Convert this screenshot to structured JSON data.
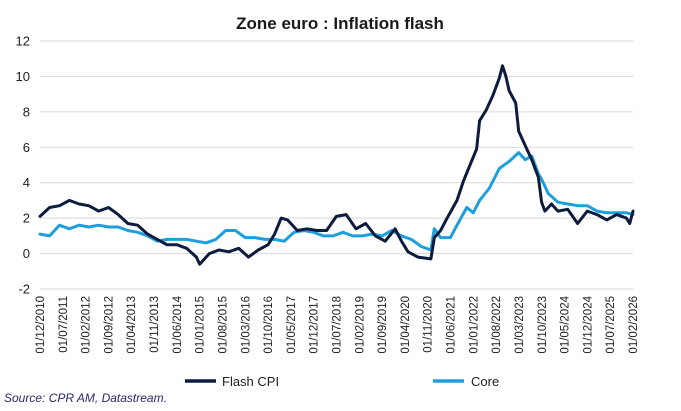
{
  "chart_data": {
    "type": "line",
    "title": "Zone euro : Inflation flash",
    "ylim": [
      -2,
      12
    ],
    "yticks": [
      -2,
      0,
      2,
      4,
      6,
      8,
      10,
      12
    ],
    "xlim": [
      "2010-12-01",
      "2026-02-01"
    ],
    "xtick_labels": [
      "01/12/2010",
      "01/07/2011",
      "01/02/2012",
      "01/09/2012",
      "01/04/2013",
      "01/11/2013",
      "01/06/2014",
      "01/01/2015",
      "01/08/2015",
      "01/03/2016",
      "01/10/2016",
      "01/05/2017",
      "01/12/2017",
      "01/07/2018",
      "01/02/2019",
      "01/09/2019",
      "01/04/2020",
      "01/11/2020",
      "01/06/2021",
      "01/01/2022",
      "01/08/2022",
      "01/03/2023",
      "01/10/2023",
      "01/05/2024",
      "01/12/2024",
      "01/07/2025",
      "01/02/2026"
    ],
    "grid": "horizontal",
    "legend_position": "bottom",
    "series": [
      {
        "name": "Flash CPI",
        "color": "#0d1b3e",
        "points": [
          [
            "2010-12-01",
            2.1
          ],
          [
            "2011-03-01",
            2.6
          ],
          [
            "2011-06-01",
            2.7
          ],
          [
            "2011-09-01",
            3.0
          ],
          [
            "2011-12-01",
            2.8
          ],
          [
            "2012-03-01",
            2.7
          ],
          [
            "2012-06-01",
            2.4
          ],
          [
            "2012-09-01",
            2.6
          ],
          [
            "2012-12-01",
            2.2
          ],
          [
            "2013-03-01",
            1.7
          ],
          [
            "2013-06-01",
            1.6
          ],
          [
            "2013-09-01",
            1.1
          ],
          [
            "2013-12-01",
            0.8
          ],
          [
            "2014-03-01",
            0.5
          ],
          [
            "2014-06-01",
            0.5
          ],
          [
            "2014-09-01",
            0.3
          ],
          [
            "2014-12-01",
            -0.2
          ],
          [
            "2015-01-01",
            -0.6
          ],
          [
            "2015-04-01",
            0.0
          ],
          [
            "2015-07-01",
            0.2
          ],
          [
            "2015-10-01",
            0.1
          ],
          [
            "2016-01-01",
            0.3
          ],
          [
            "2016-04-01",
            -0.2
          ],
          [
            "2016-07-01",
            0.2
          ],
          [
            "2016-10-01",
            0.5
          ],
          [
            "2016-12-01",
            1.1
          ],
          [
            "2017-02-01",
            2.0
          ],
          [
            "2017-04-01",
            1.9
          ],
          [
            "2017-07-01",
            1.3
          ],
          [
            "2017-10-01",
            1.4
          ],
          [
            "2018-01-01",
            1.3
          ],
          [
            "2018-04-01",
            1.3
          ],
          [
            "2018-07-01",
            2.1
          ],
          [
            "2018-10-01",
            2.2
          ],
          [
            "2019-01-01",
            1.4
          ],
          [
            "2019-04-01",
            1.7
          ],
          [
            "2019-07-01",
            1.0
          ],
          [
            "2019-10-01",
            0.7
          ],
          [
            "2020-01-01",
            1.4
          ],
          [
            "2020-03-01",
            0.7
          ],
          [
            "2020-05-01",
            0.1
          ],
          [
            "2020-08-01",
            -0.2
          ],
          [
            "2020-12-01",
            -0.3
          ],
          [
            "2021-01-01",
            0.9
          ],
          [
            "2021-03-01",
            1.3
          ],
          [
            "2021-05-01",
            2.0
          ],
          [
            "2021-08-01",
            3.0
          ],
          [
            "2021-10-01",
            4.1
          ],
          [
            "2021-12-01",
            5.0
          ],
          [
            "2022-02-01",
            5.9
          ],
          [
            "2022-03-01",
            7.5
          ],
          [
            "2022-05-01",
            8.1
          ],
          [
            "2022-07-01",
            8.9
          ],
          [
            "2022-09-01",
            9.9
          ],
          [
            "2022-10-01",
            10.6
          ],
          [
            "2022-11-01",
            10.0
          ],
          [
            "2022-12-01",
            9.2
          ],
          [
            "2023-02-01",
            8.5
          ],
          [
            "2023-03-01",
            6.9
          ],
          [
            "2023-05-01",
            6.1
          ],
          [
            "2023-07-01",
            5.3
          ],
          [
            "2023-09-01",
            4.3
          ],
          [
            "2023-10-01",
            2.9
          ],
          [
            "2023-11-01",
            2.4
          ],
          [
            "2024-01-01",
            2.8
          ],
          [
            "2024-03-01",
            2.4
          ],
          [
            "2024-06-01",
            2.5
          ],
          [
            "2024-09-01",
            1.7
          ],
          [
            "2024-12-01",
            2.4
          ],
          [
            "2025-03-01",
            2.2
          ],
          [
            "2025-06-01",
            1.9
          ],
          [
            "2025-09-01",
            2.2
          ],
          [
            "2025-12-01",
            2.0
          ],
          [
            "2026-01-01",
            1.7
          ],
          [
            "2026-02-01",
            2.4
          ]
        ]
      },
      {
        "name": "Core",
        "color": "#1e9fdc",
        "points": [
          [
            "2010-12-01",
            1.1
          ],
          [
            "2011-03-01",
            1.0
          ],
          [
            "2011-06-01",
            1.6
          ],
          [
            "2011-09-01",
            1.4
          ],
          [
            "2011-12-01",
            1.6
          ],
          [
            "2012-03-01",
            1.5
          ],
          [
            "2012-06-01",
            1.6
          ],
          [
            "2012-09-01",
            1.5
          ],
          [
            "2012-12-01",
            1.5
          ],
          [
            "2013-03-01",
            1.3
          ],
          [
            "2013-06-01",
            1.2
          ],
          [
            "2013-09-01",
            1.0
          ],
          [
            "2013-12-01",
            0.7
          ],
          [
            "2014-03-01",
            0.8
          ],
          [
            "2014-06-01",
            0.8
          ],
          [
            "2014-09-01",
            0.8
          ],
          [
            "2014-12-01",
            0.7
          ],
          [
            "2015-03-01",
            0.6
          ],
          [
            "2015-06-01",
            0.8
          ],
          [
            "2015-09-01",
            1.3
          ],
          [
            "2015-12-01",
            1.3
          ],
          [
            "2016-03-01",
            0.9
          ],
          [
            "2016-06-01",
            0.9
          ],
          [
            "2016-09-01",
            0.8
          ],
          [
            "2016-12-01",
            0.8
          ],
          [
            "2017-03-01",
            0.7
          ],
          [
            "2017-06-01",
            1.2
          ],
          [
            "2017-09-01",
            1.3
          ],
          [
            "2017-12-01",
            1.2
          ],
          [
            "2018-03-01",
            1.0
          ],
          [
            "2018-06-01",
            1.0
          ],
          [
            "2018-09-01",
            1.2
          ],
          [
            "2018-12-01",
            1.0
          ],
          [
            "2019-03-01",
            1.0
          ],
          [
            "2019-06-01",
            1.1
          ],
          [
            "2019-09-01",
            1.0
          ],
          [
            "2019-12-01",
            1.3
          ],
          [
            "2020-03-01",
            1.0
          ],
          [
            "2020-06-01",
            0.8
          ],
          [
            "2020-09-01",
            0.4
          ],
          [
            "2020-12-01",
            0.2
          ],
          [
            "2021-01-01",
            1.4
          ],
          [
            "2021-03-01",
            0.9
          ],
          [
            "2021-06-01",
            0.9
          ],
          [
            "2021-08-01",
            1.6
          ],
          [
            "2021-11-01",
            2.6
          ],
          [
            "2022-01-01",
            2.3
          ],
          [
            "2022-03-01",
            3.0
          ],
          [
            "2022-06-01",
            3.7
          ],
          [
            "2022-09-01",
            4.8
          ],
          [
            "2022-12-01",
            5.2
          ],
          [
            "2023-03-01",
            5.7
          ],
          [
            "2023-05-01",
            5.3
          ],
          [
            "2023-07-01",
            5.5
          ],
          [
            "2023-09-01",
            4.5
          ],
          [
            "2023-10-01",
            4.2
          ],
          [
            "2023-12-01",
            3.4
          ],
          [
            "2024-03-01",
            2.9
          ],
          [
            "2024-06-01",
            2.8
          ],
          [
            "2024-09-01",
            2.7
          ],
          [
            "2024-12-01",
            2.7
          ],
          [
            "2025-03-01",
            2.4
          ],
          [
            "2025-06-01",
            2.3
          ],
          [
            "2025-09-01",
            2.3
          ],
          [
            "2025-12-01",
            2.3
          ],
          [
            "2026-02-01",
            2.2
          ]
        ]
      }
    ]
  },
  "source_text": "Source: CPR AM, Datastream."
}
